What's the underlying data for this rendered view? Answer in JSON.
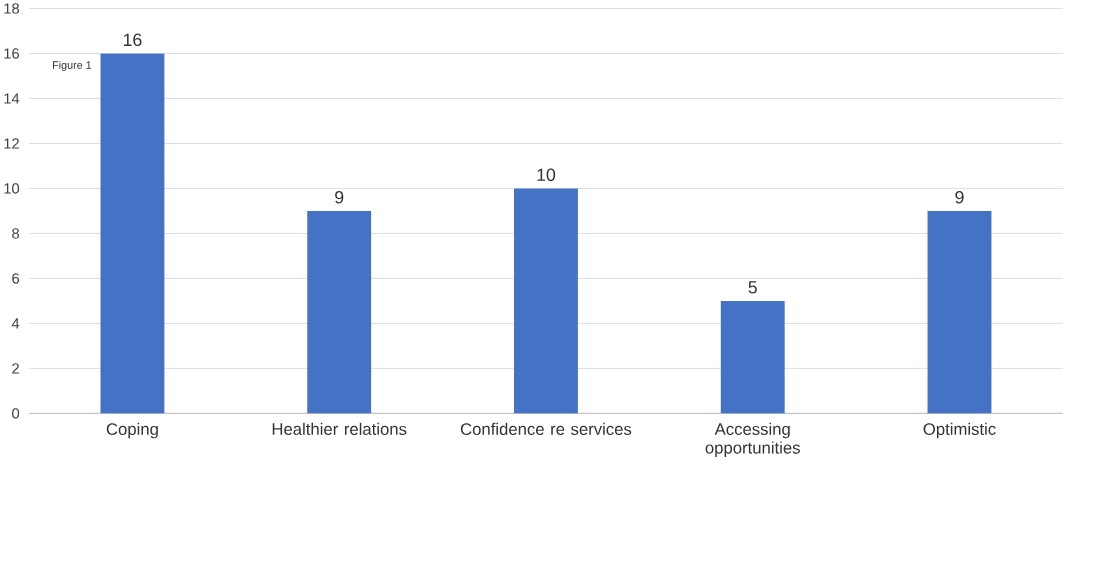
{
  "chart_data": {
    "type": "bar",
    "title": "Figure 1",
    "categories": [
      "Coping",
      "Healthier relations",
      "Confidence re services",
      "Accessing opportunities",
      "Optimistic"
    ],
    "values": [
      16,
      9,
      10,
      5,
      9
    ],
    "color": "#4472c4",
    "ylim": [
      0,
      18
    ],
    "yticks": [
      0,
      2,
      4,
      6,
      8,
      10,
      12,
      14,
      16,
      18
    ],
    "grid": "y",
    "data_labels": true
  }
}
